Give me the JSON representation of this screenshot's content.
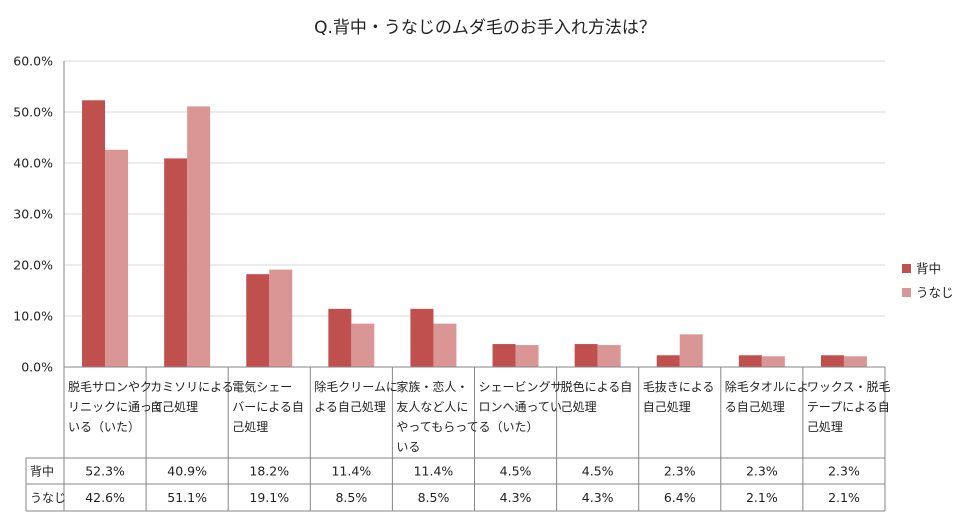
{
  "chart_data": {
    "type": "bar",
    "title": "Q.背中・うなじのムダ毛のお手入れ方法は？",
    "categories": [
      [
        "脱毛サロンやク",
        "リニックに通って",
        "いる（いた）"
      ],
      [
        "カミソリによる",
        "自己処理"
      ],
      [
        "電気シェー",
        "バーによる自",
        "己処理"
      ],
      [
        "除毛クリームに",
        "よる自己処理"
      ],
      [
        "家族・恋人・",
        "友人など人に",
        "やってもらって",
        "いる"
      ],
      [
        "シェービングサ",
        "ロンへ通ってい",
        "る（いた）"
      ],
      [
        "脱色による自",
        "己処理"
      ],
      [
        "毛抜きによる",
        "自己処理"
      ],
      [
        "除毛タオルによ",
        "る自己処理"
      ],
      [
        "ワックス・脱毛",
        "テープによる自",
        "己処理"
      ]
    ],
    "series": [
      {
        "name": "背中",
        "color": "#c0504d",
        "values": [
          52.3,
          40.9,
          18.2,
          11.4,
          11.4,
          4.5,
          4.5,
          2.3,
          2.3,
          2.3
        ],
        "labels": [
          "52.3%",
          "40.9%",
          "18.2%",
          "11.4%",
          "11.4%",
          "4.5%",
          "4.5%",
          "2.3%",
          "2.3%",
          "2.3%"
        ]
      },
      {
        "name": "うなじ",
        "color": "#d99694",
        "values": [
          42.6,
          51.1,
          19.1,
          8.5,
          8.5,
          4.3,
          4.3,
          6.4,
          2.1,
          2.1
        ],
        "labels": [
          "42.6%",
          "51.1%",
          "19.1%",
          "8.5%",
          "8.5%",
          "4.3%",
          "4.3%",
          "6.4%",
          "2.1%",
          "2.1%"
        ]
      }
    ],
    "ylim": [
      0,
      60
    ],
    "yticks": [
      "0.0%",
      "10.0%",
      "20.0%",
      "30.0%",
      "40.0%",
      "50.0%",
      "60.0%"
    ],
    "grid": true,
    "legend_position": "right",
    "data_table": true
  }
}
